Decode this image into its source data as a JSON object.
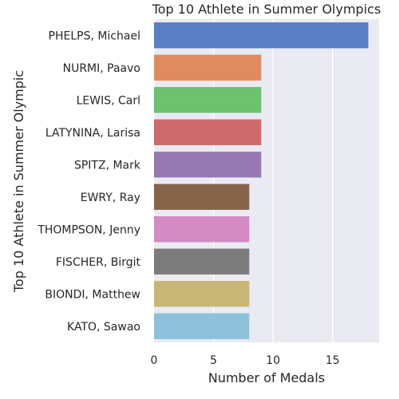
{
  "chart_data": {
    "type": "bar",
    "orientation": "horizontal",
    "title": "Top 10 Athlete in Summer Olympics",
    "xlabel": "Number of Medals",
    "ylabel": "Top 10 Athlete in Summer Olympic",
    "xlim": [
      0,
      18.9
    ],
    "xticks": [
      0,
      5,
      10,
      15
    ],
    "grid": true,
    "categories": [
      "PHELPS, Michael",
      "NURMI, Paavo",
      "LEWIS, Carl",
      "LATYNINA, Larisa",
      "SPITZ, Mark",
      "EWRY, Ray",
      "THOMPSON, Jenny",
      "FISCHER, Birgit",
      "BIONDI, Matthew",
      "KATO, Sawao"
    ],
    "values": [
      18,
      9,
      9,
      9,
      9,
      8,
      8,
      8,
      8,
      8
    ],
    "colors": [
      "#5a7fc6",
      "#de8c5f",
      "#6cc26d",
      "#cc6a6d",
      "#9579b0",
      "#86644a",
      "#d48ac2",
      "#7c7c7c",
      "#c8b677",
      "#8dc1d9"
    ],
    "plot_background": "#eaeaf2"
  }
}
